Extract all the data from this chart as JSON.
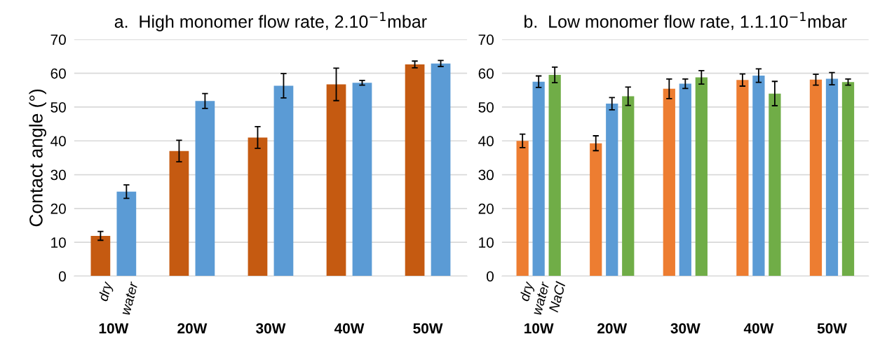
{
  "chart_data": [
    {
      "type": "bar",
      "title": "a.  High monomer flow rate, 2.10$^{−1}$mbar",
      "ylabel": "Contact angle (°)",
      "categories": [
        "10W",
        "20W",
        "30W",
        "40W",
        "50W"
      ],
      "ylim": [
        0,
        70
      ],
      "yticks": [
        0,
        10,
        20,
        30,
        40,
        50,
        60,
        70
      ],
      "grid": "y",
      "series": [
        {
          "name": "dry",
          "color": "#c55a11",
          "values": [
            11.9,
            37.0,
            41.0,
            56.7,
            62.6
          ],
          "errors": [
            1.3,
            3.2,
            3.2,
            4.8,
            1.0
          ]
        },
        {
          "name": "water",
          "color": "#5b9bd5",
          "values": [
            25.0,
            51.8,
            56.3,
            57.2,
            62.9
          ],
          "errors": [
            2.0,
            2.2,
            3.6,
            0.7,
            0.9
          ]
        }
      ]
    },
    {
      "type": "bar",
      "title": "b.  Low monomer flow rate, 1.1.10$^{−1}$mbar",
      "categories": [
        "10W",
        "20W",
        "30W",
        "40W",
        "50W"
      ],
      "ylim": [
        0,
        70
      ],
      "yticks": [
        0,
        10,
        20,
        30,
        40,
        50,
        60,
        70
      ],
      "grid": "y",
      "series": [
        {
          "name": "dry",
          "color": "#ed7d31",
          "values": [
            40.0,
            39.3,
            55.4,
            58.0,
            58.1
          ],
          "errors": [
            2.0,
            2.2,
            2.9,
            1.8,
            1.6
          ]
        },
        {
          "name": "water",
          "color": "#5b9bd5",
          "values": [
            57.5,
            51.0,
            56.9,
            59.3,
            58.4
          ],
          "errors": [
            1.7,
            1.8,
            1.4,
            2.0,
            1.8
          ]
        },
        {
          "name": "NaCl",
          "color": "#70ad47",
          "values": [
            59.5,
            53.2,
            58.8,
            54.0,
            57.4
          ],
          "errors": [
            2.3,
            2.7,
            2.0,
            3.6,
            0.9
          ]
        }
      ]
    }
  ]
}
